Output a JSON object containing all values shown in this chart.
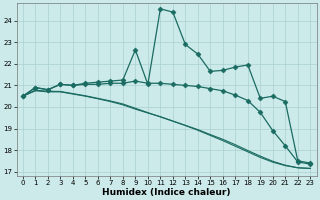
{
  "xlabel": "Humidex (Indice chaleur)",
  "bg_color": "#cceaea",
  "line_color": "#1a6b62",
  "grid_color": "#aad0d0",
  "xlim": [
    -0.5,
    23.5
  ],
  "ylim": [
    16.8,
    24.8
  ],
  "yticks": [
    17,
    18,
    19,
    20,
    21,
    22,
    23,
    24
  ],
  "xticks": [
    0,
    1,
    2,
    3,
    4,
    5,
    6,
    7,
    8,
    9,
    10,
    11,
    12,
    13,
    14,
    15,
    16,
    17,
    18,
    19,
    20,
    21,
    22,
    23
  ],
  "series": [
    [
      20.5,
      20.9,
      20.8,
      21.05,
      21.0,
      21.1,
      21.15,
      21.2,
      21.25,
      22.65,
      21.05,
      24.55,
      24.4,
      22.9,
      22.45,
      21.65,
      21.7,
      21.85,
      21.95,
      20.4,
      20.5,
      20.25,
      17.5,
      17.4
    ],
    [
      20.5,
      20.9,
      20.8,
      21.05,
      21.0,
      21.05,
      21.05,
      21.1,
      21.1,
      21.2,
      21.1,
      21.1,
      21.05,
      21.0,
      20.95,
      20.85,
      20.75,
      20.55,
      20.3,
      19.75,
      18.9,
      18.2,
      17.45,
      17.35
    ],
    [
      20.5,
      20.75,
      20.7,
      20.7,
      20.6,
      20.5,
      20.38,
      20.25,
      20.1,
      19.9,
      19.72,
      19.55,
      19.35,
      19.15,
      18.95,
      18.72,
      18.5,
      18.25,
      17.98,
      17.72,
      17.48,
      17.3,
      17.18,
      17.15
    ],
    [
      20.5,
      20.78,
      20.73,
      20.72,
      20.62,
      20.52,
      20.4,
      20.28,
      20.14,
      19.94,
      19.74,
      19.54,
      19.34,
      19.14,
      18.92,
      18.68,
      18.44,
      18.18,
      17.92,
      17.66,
      17.44,
      17.28,
      17.18,
      17.15
    ]
  ],
  "marker": "D",
  "markersize": 2.5
}
